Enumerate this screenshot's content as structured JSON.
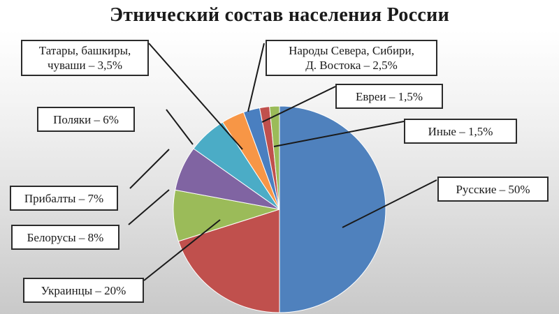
{
  "title": "Этнический состав населения России",
  "chart_data": {
    "type": "pie",
    "title": "Этнический состав населения России",
    "slices": [
      {
        "name": "Русские",
        "value": 50,
        "label": "Русские – 50%",
        "color": "#4f81bd"
      },
      {
        "name": "Украинцы",
        "value": 20,
        "label": "Украинцы – 20%",
        "color": "#c0504d"
      },
      {
        "name": "Белорусы",
        "value": 8,
        "label": "Белорусы – 8%",
        "color": "#9bbb59"
      },
      {
        "name": "Прибалты",
        "value": 7,
        "label": "Прибалты – 7%",
        "color": "#8064a2"
      },
      {
        "name": "Поляки",
        "value": 6,
        "label": "Поляки – 6%",
        "color": "#4bacc6"
      },
      {
        "name": "Татары, башкиры, чуваши",
        "value": 3.5,
        "label": "Татары, башкиры,\nчуваши – 3,5%",
        "color": "#f79646"
      },
      {
        "name": "Народы Севера, Сибири, Д. Востока",
        "value": 2.5,
        "label": "Народы Севера, Сибири,\nД. Востока – 2,5%",
        "color": "#4a7fc0"
      },
      {
        "name": "Евреи",
        "value": 1.5,
        "label": "Евреи – 1,5%",
        "color": "#c0504d"
      },
      {
        "name": "Иные",
        "value": 1.5,
        "label": "Иные – 1,5%",
        "color": "#9bbb59"
      }
    ]
  }
}
